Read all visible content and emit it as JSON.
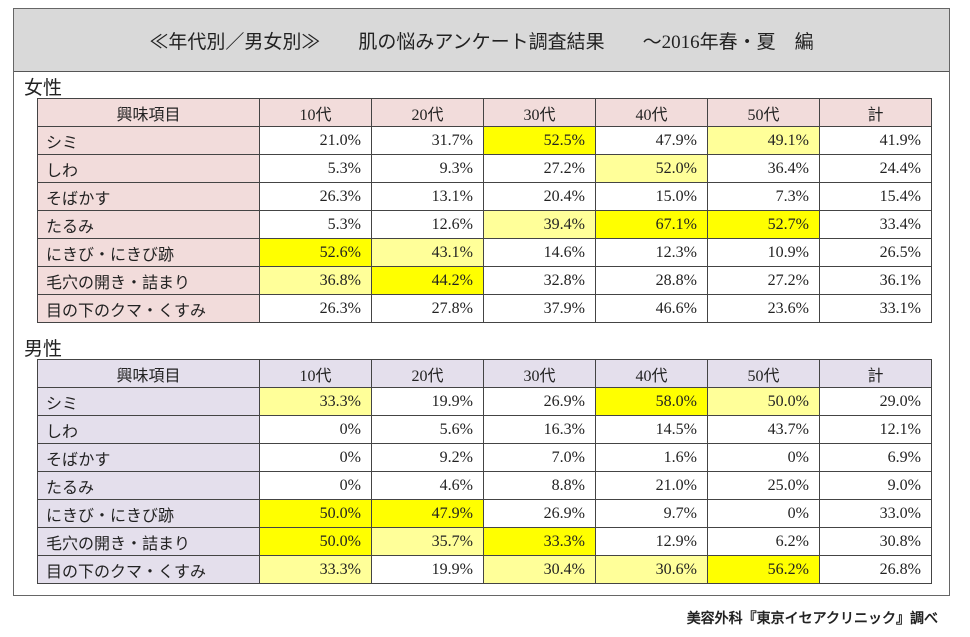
{
  "title": "≪年代別／男女別≫　　肌の悩みアンケート調査結果　　～2016年春・夏　編",
  "columns": [
    "興味項目",
    "10代",
    "20代",
    "30代",
    "40代",
    "50代",
    "計"
  ],
  "highlight_colors": {
    "strong": "#ffff00",
    "light": "#ffff99"
  },
  "sections": [
    {
      "label": "女性",
      "header_color": "#f2dcdb",
      "rows": [
        {
          "item": "シミ",
          "values": [
            "21.0%",
            "31.7%",
            "52.5%",
            "47.9%",
            "49.1%",
            "41.9%"
          ],
          "highlight": [
            0,
            0,
            2,
            0,
            1,
            0
          ]
        },
        {
          "item": "しわ",
          "values": [
            "5.3%",
            "9.3%",
            "27.2%",
            "52.0%",
            "36.4%",
            "24.4%"
          ],
          "highlight": [
            0,
            0,
            0,
            1,
            0,
            0
          ]
        },
        {
          "item": "そばかす",
          "values": [
            "26.3%",
            "13.1%",
            "20.4%",
            "15.0%",
            "7.3%",
            "15.4%"
          ],
          "highlight": [
            0,
            0,
            0,
            0,
            0,
            0
          ]
        },
        {
          "item": "たるみ",
          "values": [
            "5.3%",
            "12.6%",
            "39.4%",
            "67.1%",
            "52.7%",
            "33.4%"
          ],
          "highlight": [
            0,
            0,
            1,
            2,
            2,
            0
          ]
        },
        {
          "item": "にきび・にきび跡",
          "values": [
            "52.6%",
            "43.1%",
            "14.6%",
            "12.3%",
            "10.9%",
            "26.5%"
          ],
          "highlight": [
            2,
            1,
            0,
            0,
            0,
            0
          ]
        },
        {
          "item": "毛穴の開き・詰まり",
          "values": [
            "36.8%",
            "44.2%",
            "32.8%",
            "28.8%",
            "27.2%",
            "36.1%"
          ],
          "highlight": [
            1,
            2,
            0,
            0,
            0,
            0
          ]
        },
        {
          "item": "目の下のクマ・くすみ",
          "values": [
            "26.3%",
            "27.8%",
            "37.9%",
            "46.6%",
            "23.6%",
            "33.1%"
          ],
          "highlight": [
            0,
            0,
            0,
            0,
            0,
            0
          ]
        }
      ]
    },
    {
      "label": "男性",
      "header_color": "#e4dfec",
      "rows": [
        {
          "item": "シミ",
          "values": [
            "33.3%",
            "19.9%",
            "26.9%",
            "58.0%",
            "50.0%",
            "29.0%"
          ],
          "highlight": [
            1,
            0,
            0,
            2,
            1,
            0
          ]
        },
        {
          "item": "しわ",
          "values": [
            "0%",
            "5.6%",
            "16.3%",
            "14.5%",
            "43.7%",
            "12.1%"
          ],
          "highlight": [
            0,
            0,
            0,
            0,
            0,
            0
          ]
        },
        {
          "item": "そばかす",
          "values": [
            "0%",
            "9.2%",
            "7.0%",
            "1.6%",
            "0%",
            "6.9%"
          ],
          "highlight": [
            0,
            0,
            0,
            0,
            0,
            0
          ]
        },
        {
          "item": "たるみ",
          "values": [
            "0%",
            "4.6%",
            "8.8%",
            "21.0%",
            "25.0%",
            "9.0%"
          ],
          "highlight": [
            0,
            0,
            0,
            0,
            0,
            0
          ]
        },
        {
          "item": "にきび・にきび跡",
          "values": [
            "50.0%",
            "47.9%",
            "26.9%",
            "9.7%",
            "0%",
            "33.0%"
          ],
          "highlight": [
            2,
            2,
            0,
            0,
            0,
            0
          ]
        },
        {
          "item": "毛穴の開き・詰まり",
          "values": [
            "50.0%",
            "35.7%",
            "33.3%",
            "12.9%",
            "6.2%",
            "30.8%"
          ],
          "highlight": [
            2,
            1,
            2,
            0,
            0,
            0
          ]
        },
        {
          "item": "目の下のクマ・くすみ",
          "values": [
            "33.3%",
            "19.9%",
            "30.4%",
            "30.6%",
            "56.2%",
            "26.8%"
          ],
          "highlight": [
            1,
            0,
            1,
            1,
            2,
            0
          ]
        }
      ]
    }
  ],
  "credit": "美容外科『東京イセアクリニック』調べ"
}
